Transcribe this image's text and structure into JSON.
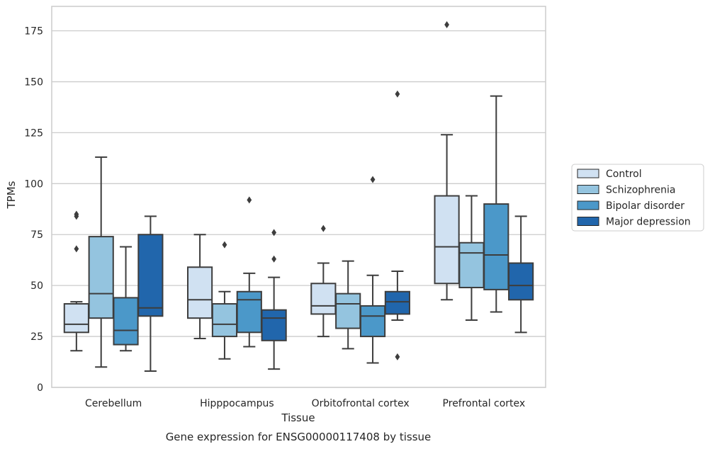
{
  "chart_data": {
    "type": "boxplot",
    "title": "",
    "caption": "Gene expression for ENSG00000117408 by tissue",
    "xlabel": "Tissue",
    "ylabel": "TPMs",
    "ylim": [
      0,
      187
    ],
    "yticks": [
      0,
      25,
      50,
      75,
      100,
      125,
      150,
      175
    ],
    "grid": "horizontal",
    "legend_position": "right",
    "categories": [
      "Cerebellum",
      "Hipppocampus",
      "Orbitofrontal cortex",
      "Prefrontal cortex"
    ],
    "series": [
      {
        "name": "Control",
        "color": "#d0e1f2",
        "boxes": [
          {
            "whislo": 18,
            "q1": 27,
            "med": 31,
            "q3": 41,
            "whishi": 42,
            "fliers": [
              68,
              84,
              85
            ]
          },
          {
            "whislo": 24,
            "q1": 34,
            "med": 43,
            "q3": 59,
            "whishi": 75,
            "fliers": []
          },
          {
            "whislo": 25,
            "q1": 36,
            "med": 40,
            "q3": 51,
            "whishi": 61,
            "fliers": [
              78
            ]
          },
          {
            "whislo": 43,
            "q1": 51,
            "med": 69,
            "q3": 94,
            "whishi": 124,
            "fliers": [
              178
            ]
          }
        ]
      },
      {
        "name": "Schizophrenia",
        "color": "#94c4df",
        "boxes": [
          {
            "whislo": 10,
            "q1": 34,
            "med": 46,
            "q3": 74,
            "whishi": 113,
            "fliers": []
          },
          {
            "whislo": 14,
            "q1": 25,
            "med": 31,
            "q3": 41,
            "whishi": 47,
            "fliers": [
              70
            ]
          },
          {
            "whislo": 19,
            "q1": 29,
            "med": 41,
            "q3": 46,
            "whishi": 62,
            "fliers": []
          },
          {
            "whislo": 33,
            "q1": 49,
            "med": 66,
            "q3": 71,
            "whishi": 94,
            "fliers": []
          }
        ]
      },
      {
        "name": "Bipolar disorder",
        "color": "#4b98c9",
        "boxes": [
          {
            "whislo": 18,
            "q1": 21,
            "med": 28,
            "q3": 44,
            "whishi": 69,
            "fliers": []
          },
          {
            "whislo": 20,
            "q1": 27,
            "med": 43,
            "q3": 47,
            "whishi": 56,
            "fliers": [
              92
            ]
          },
          {
            "whislo": 12,
            "q1": 25,
            "med": 35,
            "q3": 40,
            "whishi": 55,
            "fliers": [
              102
            ]
          },
          {
            "whislo": 37,
            "q1": 48,
            "med": 65,
            "q3": 90,
            "whishi": 143,
            "fliers": []
          }
        ]
      },
      {
        "name": "Major depression",
        "color": "#2166ac",
        "boxes": [
          {
            "whislo": 8,
            "q1": 35,
            "med": 39,
            "q3": 75,
            "whishi": 84,
            "fliers": []
          },
          {
            "whislo": 9,
            "q1": 23,
            "med": 34,
            "q3": 38,
            "whishi": 54,
            "fliers": [
              63,
              76
            ]
          },
          {
            "whislo": 33,
            "q1": 36,
            "med": 42,
            "q3": 47,
            "whishi": 57,
            "fliers": [
              15,
              144
            ]
          },
          {
            "whislo": 27,
            "q1": 43,
            "med": 50,
            "q3": 61,
            "whishi": 84,
            "fliers": []
          }
        ]
      }
    ]
  }
}
